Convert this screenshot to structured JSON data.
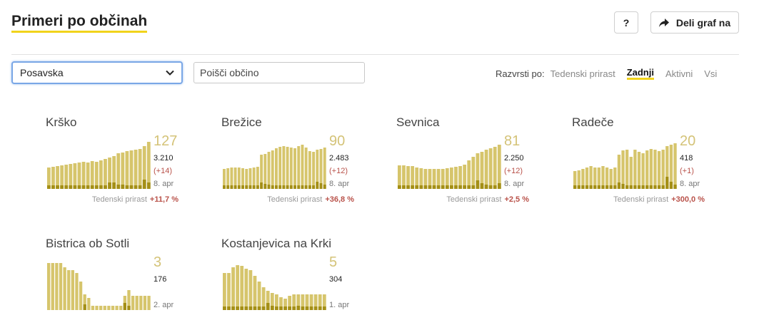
{
  "header": {
    "title": "Primeri po občinah",
    "help_label": "?",
    "share_label": "Deli graf na"
  },
  "filters": {
    "region_selected": "Posavska",
    "search_placeholder": "Poišči občino"
  },
  "sort": {
    "label": "Razvrsti po:",
    "options": [
      "Tedenski prirast",
      "Zadnji",
      "Aktivni",
      "Vsi"
    ],
    "active": "Zadnji"
  },
  "colors": {
    "accent": "#f1d31c",
    "bar": "#d6c56c",
    "bar_dark": "#a48f16",
    "negative": "#b9524a"
  },
  "municipalities": [
    {
      "name": "Krško",
      "active": "127",
      "total": "3.210",
      "delta": "(+14)",
      "date": "8. apr",
      "weekly_label": "Tedenski prirast",
      "weekly_value": "+11,7 %",
      "bars": [
        30,
        31,
        32,
        33,
        34,
        35,
        36,
        37,
        38,
        37,
        39,
        38,
        40,
        42,
        44,
        46,
        50,
        51,
        53,
        54,
        55,
        56,
        60,
        66
      ],
      "low_bars": [
        5,
        5,
        5,
        5,
        5,
        5,
        5,
        5,
        5,
        5,
        5,
        5,
        5,
        5,
        9,
        9,
        6,
        6,
        5,
        5,
        5,
        5,
        13,
        9
      ]
    },
    {
      "name": "Brežice",
      "active": "90",
      "total": "2.483",
      "delta": "(+12)",
      "date": "8. apr",
      "weekly_label": "Tedenski prirast",
      "weekly_value": "+36,8 %",
      "bars": [
        28,
        29,
        30,
        30,
        30,
        29,
        28,
        29,
        30,
        31,
        48,
        49,
        52,
        54,
        57,
        59,
        60,
        59,
        58,
        57,
        60,
        62,
        58,
        53,
        52,
        55,
        56,
        58
      ],
      "low_bars": [
        5,
        5,
        5,
        5,
        5,
        5,
        5,
        5,
        5,
        5,
        9,
        7,
        6,
        5,
        5,
        5,
        5,
        5,
        5,
        5,
        5,
        5,
        5,
        5,
        5,
        10,
        8,
        6
      ]
    },
    {
      "name": "Sevnica",
      "active": "81",
      "total": "2.250",
      "delta": "(+12)",
      "date": "8. apr",
      "weekly_label": "Tedenski prirast",
      "weekly_value": "+2,5 %",
      "bars": [
        33,
        33,
        32,
        32,
        30,
        29,
        28,
        28,
        28,
        28,
        28,
        29,
        30,
        31,
        32,
        34,
        40,
        45,
        50,
        52,
        55,
        57,
        59,
        62
      ],
      "low_bars": [
        5,
        5,
        5,
        5,
        5,
        5,
        5,
        5,
        5,
        5,
        5,
        5,
        5,
        5,
        5,
        5,
        5,
        5,
        12,
        8,
        6,
        5,
        5,
        8
      ]
    },
    {
      "name": "Radeče",
      "active": "20",
      "total": "418",
      "delta": "(+1)",
      "date": "8. apr",
      "weekly_label": "Tedenski prirast",
      "weekly_value": "+300,0 %",
      "bars": [
        25,
        26,
        28,
        30,
        32,
        30,
        30,
        32,
        30,
        28,
        30,
        48,
        54,
        55,
        45,
        55,
        52,
        50,
        54,
        56,
        55,
        53,
        55,
        60,
        62,
        64
      ],
      "low_bars": [
        5,
        5,
        5,
        5,
        5,
        5,
        5,
        5,
        5,
        5,
        5,
        9,
        7,
        5,
        5,
        5,
        5,
        5,
        5,
        5,
        5,
        5,
        5,
        17,
        10,
        6
      ]
    },
    {
      "name": "Bistrica ob Sotli",
      "active": "3",
      "total": "176",
      "delta": "",
      "date": "2. apr",
      "weekly_label": "",
      "weekly_value": "",
      "bars": [
        66,
        66,
        66,
        66,
        60,
        56,
        56,
        52,
        40,
        22,
        17,
        6,
        6,
        6,
        6,
        6,
        6,
        6,
        6,
        20,
        28,
        20,
        20,
        20,
        20,
        20
      ],
      "low_bars": [
        0,
        0,
        0,
        0,
        0,
        0,
        0,
        0,
        0,
        8,
        0,
        0,
        0,
        0,
        0,
        0,
        0,
        0,
        0,
        10,
        6,
        0,
        0,
        0,
        0,
        0
      ]
    },
    {
      "name": "Kostanjevica na Krki",
      "active": "5",
      "total": "304",
      "delta": "",
      "date": "1. apr",
      "weekly_label": "",
      "weekly_value": "",
      "bars": [
        52,
        52,
        60,
        63,
        62,
        58,
        56,
        48,
        40,
        32,
        27,
        24,
        22,
        18,
        16,
        20,
        22,
        22,
        22,
        22,
        22,
        22,
        22,
        22
      ],
      "low_bars": [
        5,
        5,
        5,
        5,
        5,
        5,
        5,
        5,
        5,
        5,
        10,
        6,
        5,
        5,
        5,
        5,
        5,
        6,
        5,
        5,
        5,
        5,
        5,
        5
      ]
    }
  ]
}
